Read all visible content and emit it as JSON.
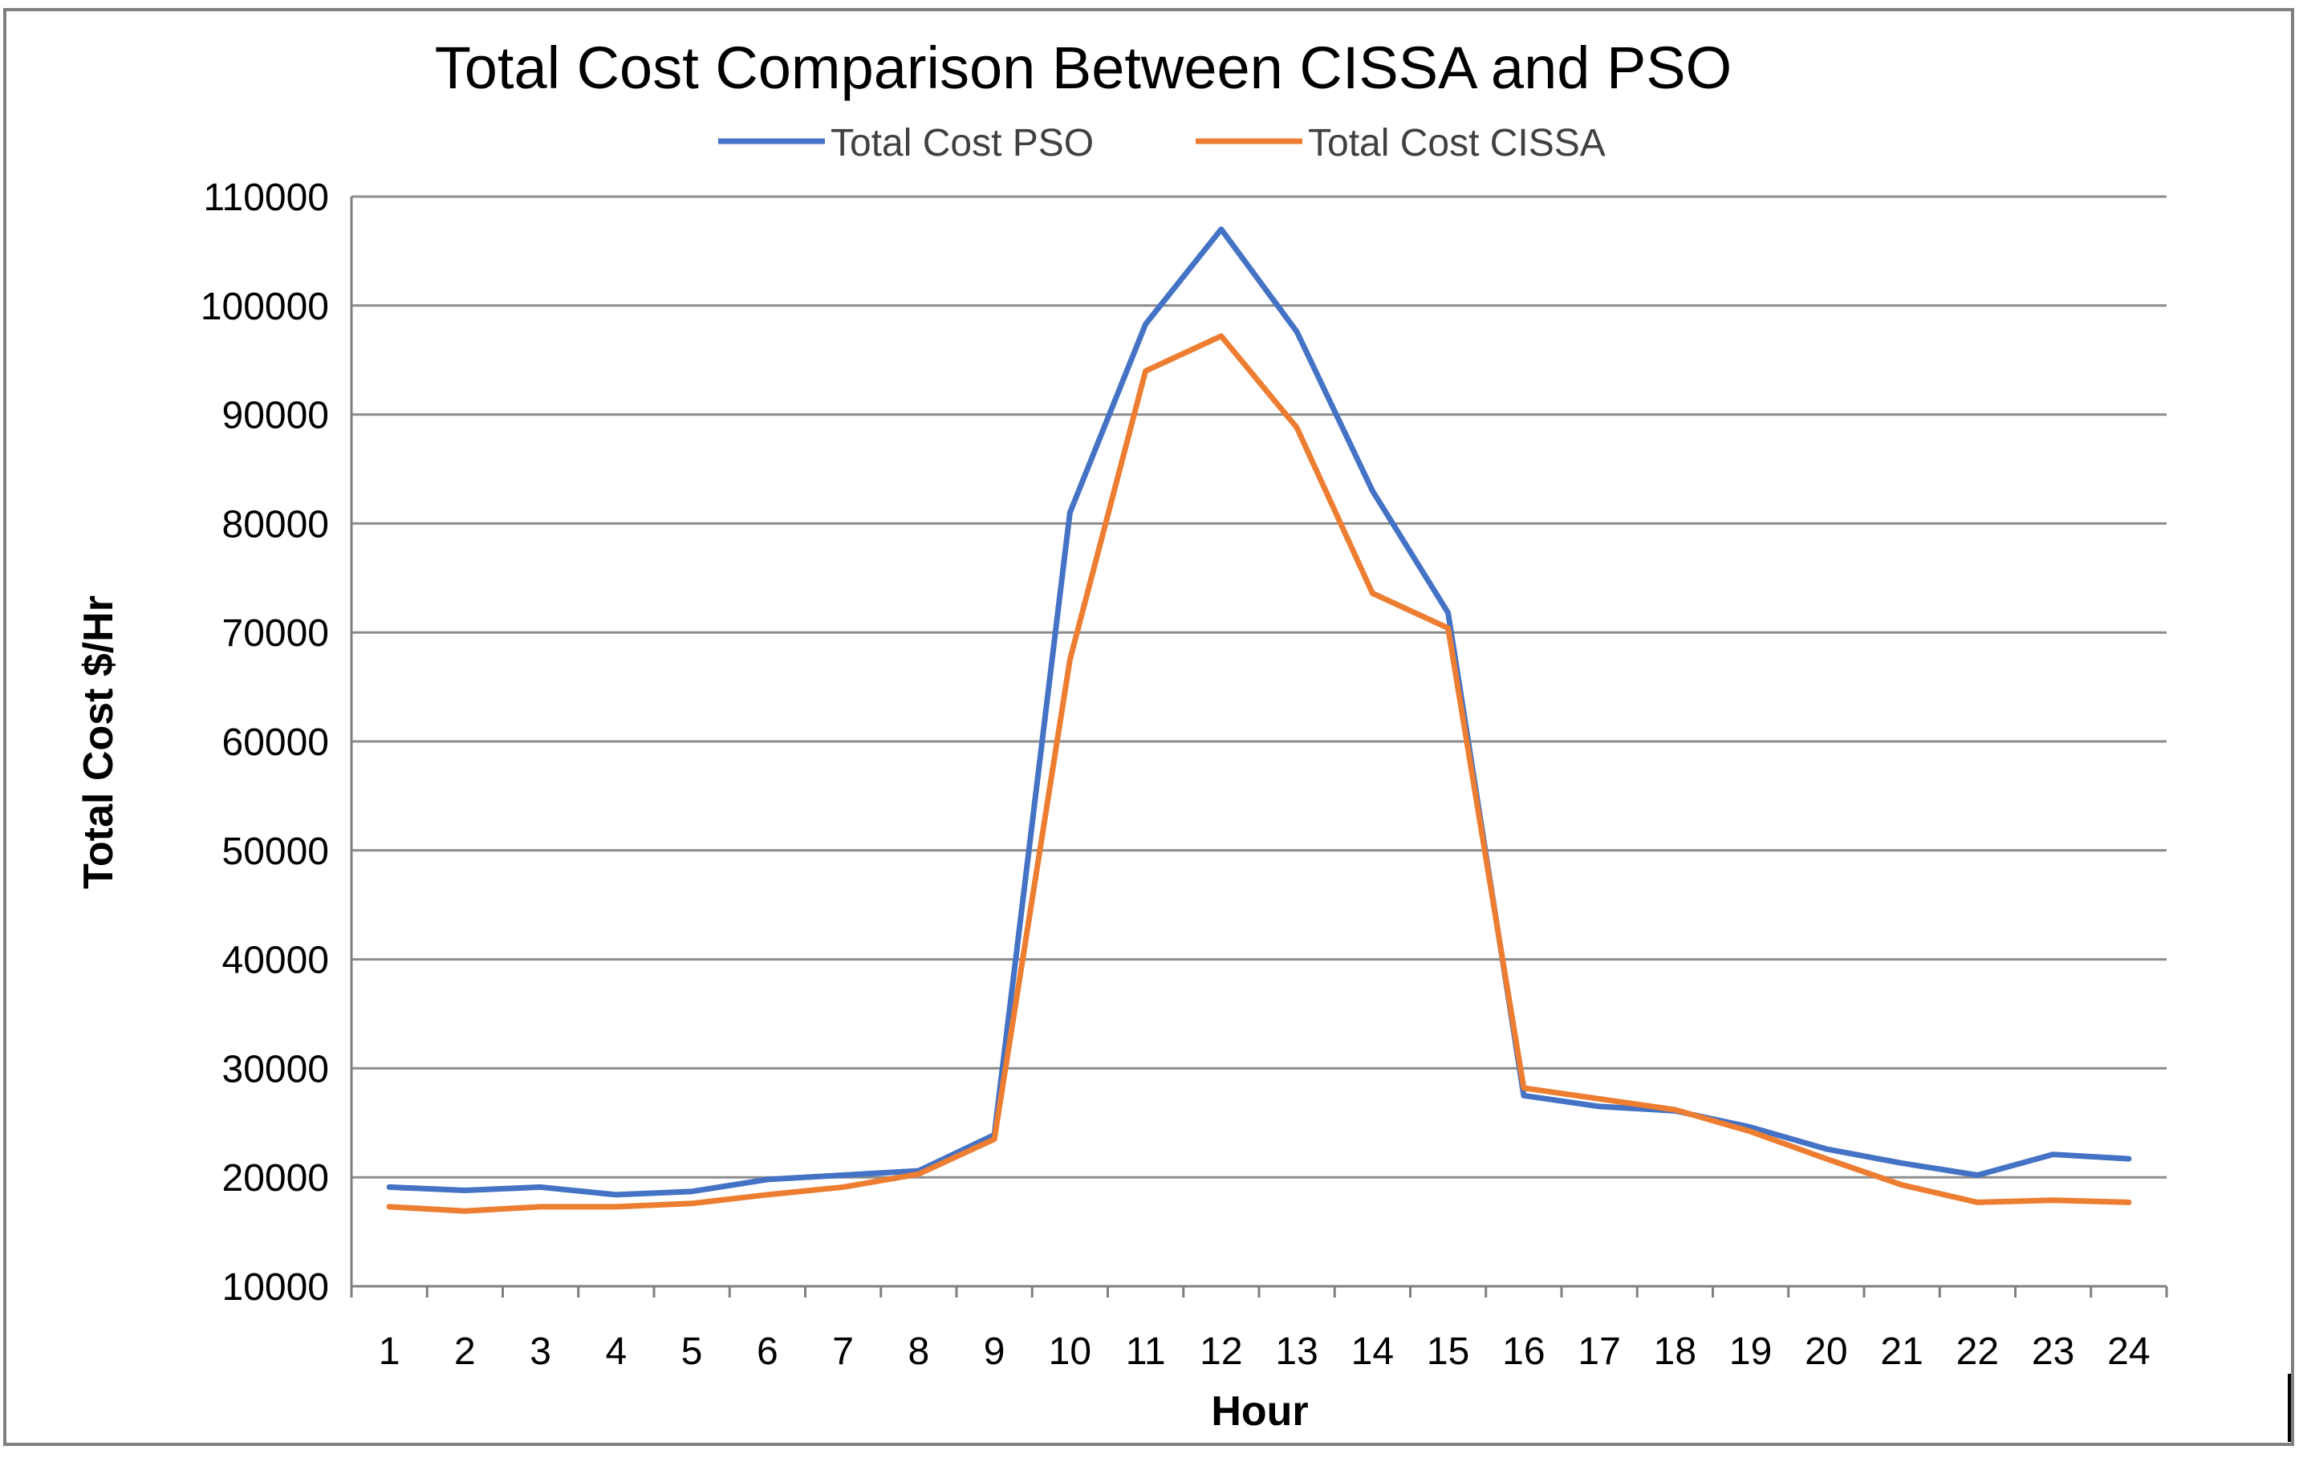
{
  "chart_data": {
    "type": "line",
    "title": "Total Cost Comparison Between CISSA and PSO",
    "xlabel": "Hour",
    "ylabel": "Total Cost  $/Hr",
    "categories": [
      "1",
      "2",
      "3",
      "4",
      "5",
      "6",
      "7",
      "8",
      "9",
      "10",
      "11",
      "12",
      "13",
      "14",
      "15",
      "16",
      "17",
      "18",
      "19",
      "20",
      "21",
      "22",
      "23",
      "24"
    ],
    "ylim": [
      10000,
      110000
    ],
    "yticks": [
      "10000",
      "20000",
      "30000",
      "40000",
      "50000",
      "60000",
      "70000",
      "80000",
      "90000",
      "100000",
      "110000"
    ],
    "grid": true,
    "legend_position": "top-center",
    "series": [
      {
        "name": "Total Cost PSO",
        "color": "#4472C4",
        "values": [
          19100,
          18800,
          19100,
          18400,
          18700,
          19800,
          20200,
          20600,
          23900,
          81000,
          98300,
          107000,
          97600,
          83000,
          71800,
          27500,
          26500,
          26100,
          24600,
          22600,
          21300,
          20200,
          22100,
          21700
        ]
      },
      {
        "name": "Total Cost CISSA",
        "color": "#ED7D31",
        "values": [
          17300,
          16900,
          17300,
          17300,
          17600,
          18400,
          19100,
          20300,
          23500,
          67500,
          94000,
          97200,
          88800,
          73600,
          70400,
          28200,
          27200,
          26200,
          24200,
          21700,
          19300,
          17700,
          17900,
          17700
        ]
      }
    ]
  }
}
